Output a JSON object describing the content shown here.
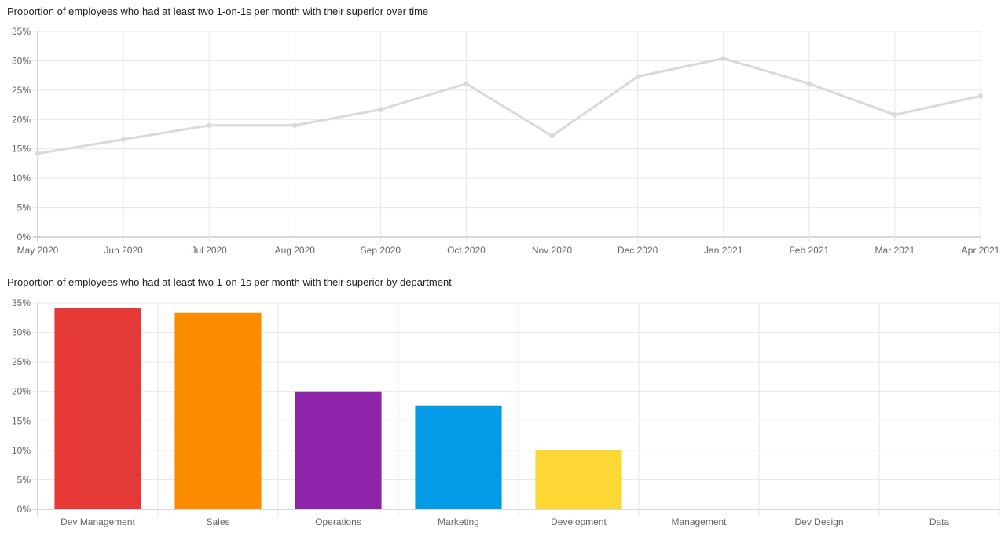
{
  "chart_data": [
    {
      "type": "line",
      "title": "Proportion of employees who had at least two 1-on-1s per month with their superior over time",
      "categories": [
        "May 2020",
        "Jun 2020",
        "Jul 2020",
        "Aug 2020",
        "Sep 2020",
        "Oct 2020",
        "Nov 2020",
        "Dec 2020",
        "Jan 2021",
        "Feb 2021",
        "Mar 2021",
        "Apr 2021"
      ],
      "series": [
        {
          "values": [
            14.2,
            16.6,
            19.0,
            19.0,
            21.7,
            26.1,
            17.2,
            27.3,
            30.4,
            26.1,
            20.8,
            24.0
          ],
          "color": "#d9d9d9"
        }
      ],
      "ylim": [
        0,
        35
      ],
      "yticks": [
        "0%",
        "5%",
        "10%",
        "15%",
        "20%",
        "25%",
        "30%",
        "35%"
      ],
      "xlabel": "",
      "ylabel": "",
      "grid": true,
      "legend": "none"
    },
    {
      "type": "bar",
      "title": "Proportion of employees who had at least two 1-on-1s per month with their superior by department",
      "categories": [
        "Dev Management",
        "Sales",
        "Operations",
        "Marketing",
        "Development",
        "Management",
        "Dev Design",
        "Data"
      ],
      "values": [
        34.2,
        33.3,
        20.0,
        17.6,
        10.0,
        0,
        0,
        0
      ],
      "colors": [
        "#e53935",
        "#fb8c00",
        "#8e24aa",
        "#039be5",
        "#fdd835",
        "#43a047",
        "#3949ab",
        "#00acc1"
      ],
      "ylim": [
        0,
        35
      ],
      "yticks": [
        "0%",
        "5%",
        "10%",
        "15%",
        "20%",
        "25%",
        "30%",
        "35%"
      ],
      "xlabel": "",
      "ylabel": "",
      "grid": true,
      "legend": "none"
    }
  ]
}
